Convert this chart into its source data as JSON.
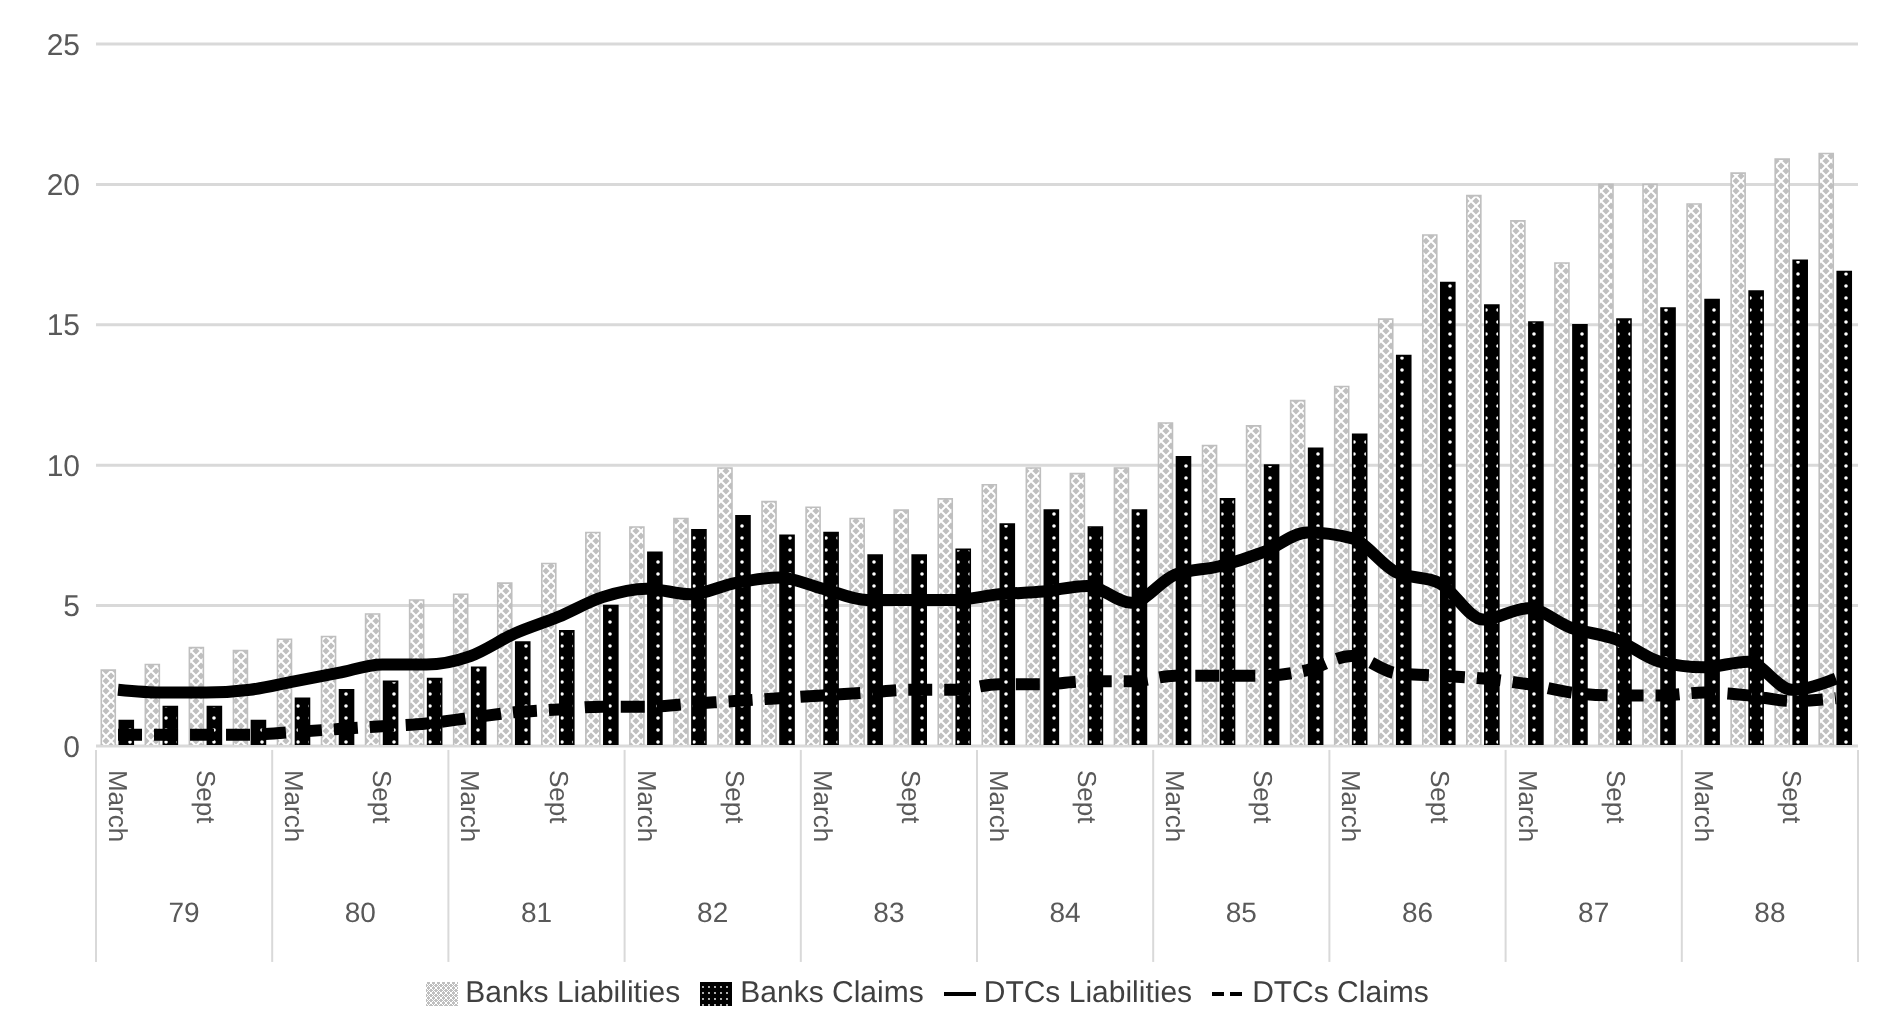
{
  "chart_data": {
    "type": "bar",
    "categories": [
      "March",
      null,
      "Sept",
      null,
      "March",
      null,
      "Sept",
      null,
      "March",
      null,
      "Sept",
      null,
      "March",
      null,
      "Sept",
      null,
      "March",
      null,
      "Sept",
      null,
      "March",
      null,
      "Sept",
      null,
      "March",
      null,
      "Sept",
      null,
      "March",
      null,
      "Sept",
      null,
      "March",
      null,
      "Sept",
      null,
      "March",
      null,
      "Sept",
      null
    ],
    "annotations": [
      "79",
      "80",
      "81",
      "82",
      "83",
      "84",
      "85",
      "86",
      "87",
      "88"
    ],
    "series": [
      {
        "name": "Banks Liabilities",
        "color": "#bfbfbf",
        "values": [
          2.7,
          2.9,
          3.5,
          3.4,
          3.8,
          3.9,
          4.7,
          5.2,
          5.4,
          5.8,
          6.5,
          7.6,
          7.8,
          8.1,
          9.9,
          8.7,
          8.5,
          8.1,
          8.4,
          8.8,
          9.3,
          9.9,
          9.7,
          9.9,
          11.5,
          10.7,
          11.4,
          12.3,
          12.8,
          15.2,
          18.2,
          19.6,
          18.7,
          17.2,
          20.0,
          20.0,
          19.3,
          20.4,
          20.9,
          21.1
        ]
      },
      {
        "name": "Banks Claims",
        "color": "#000000",
        "values": [
          0.9,
          1.4,
          1.4,
          0.9,
          1.7,
          2.0,
          2.3,
          2.4,
          2.8,
          3.7,
          4.1,
          5.0,
          6.9,
          7.7,
          8.2,
          7.5,
          7.6,
          6.8,
          6.8,
          7.0,
          7.9,
          8.4,
          7.8,
          8.4,
          10.3,
          8.8,
          10.0,
          10.6,
          11.1,
          13.9,
          16.5,
          15.7,
          15.1,
          15.0,
          15.2,
          15.6,
          15.9,
          16.2,
          17.3,
          16.9
        ]
      },
      {
        "name": "DTCs Liabilities",
        "type": "line",
        "line_style": "solid",
        "color": "#000000",
        "values": [
          2.0,
          1.9,
          1.9,
          2.0,
          2.3,
          2.6,
          2.9,
          2.9,
          3.2,
          4.0,
          4.6,
          5.3,
          5.6,
          5.4,
          5.8,
          6.0,
          5.6,
          5.2,
          5.2,
          5.2,
          5.4,
          5.5,
          5.7,
          5.1,
          6.1,
          6.4,
          6.9,
          7.6,
          7.4,
          6.2,
          5.8,
          4.5,
          4.9,
          4.2,
          3.8,
          3.0,
          2.8,
          3.0,
          2.0,
          2.4
        ]
      },
      {
        "name": "DTCs Claims",
        "type": "line",
        "line_style": "dashed",
        "color": "#000000",
        "values": [
          0.4,
          0.4,
          0.4,
          0.4,
          0.5,
          0.6,
          0.7,
          0.8,
          1.0,
          1.2,
          1.3,
          1.4,
          1.4,
          1.5,
          1.6,
          1.7,
          1.8,
          1.9,
          2.0,
          2.0,
          2.2,
          2.2,
          2.3,
          2.3,
          2.5,
          2.5,
          2.5,
          2.7,
          3.2,
          2.6,
          2.5,
          2.4,
          2.2,
          1.9,
          1.8,
          1.8,
          1.9,
          1.8,
          1.6,
          1.7
        ]
      }
    ],
    "ylim": [
      0,
      25
    ],
    "yticks": [
      0,
      5,
      10,
      15,
      20,
      25
    ],
    "grid": "y",
    "legend": "bottom",
    "marker": "none"
  }
}
